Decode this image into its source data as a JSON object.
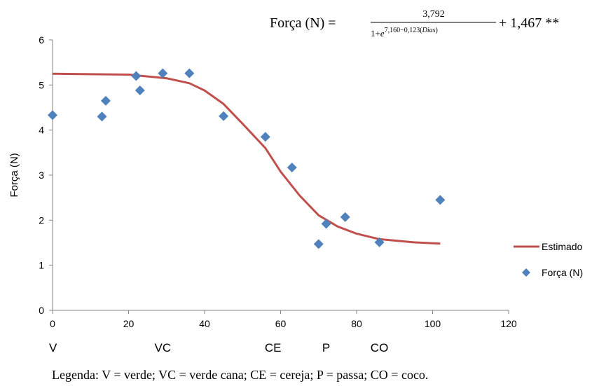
{
  "chart_data": {
    "type": "scatter",
    "ylabel": "Força (N)",
    "xlim": [
      0,
      120
    ],
    "ylim": [
      0,
      6
    ],
    "x_ticks": [
      "0",
      "20",
      "40",
      "60",
      "80",
      "100",
      "120"
    ],
    "y_ticks": [
      "0",
      "1",
      "2",
      "3",
      "4",
      "5",
      "6"
    ],
    "grid": false,
    "legend_position": "right",
    "series": [
      {
        "name": "Força (N)",
        "kind": "scatter",
        "color": "#4F81BD",
        "x": [
          0,
          13,
          14,
          22,
          23,
          29,
          36,
          45,
          56,
          63,
          70,
          72,
          77,
          86,
          102
        ],
        "y": [
          4.33,
          4.3,
          4.65,
          5.2,
          4.88,
          5.26,
          5.26,
          4.31,
          3.85,
          3.17,
          1.47,
          1.92,
          2.07,
          1.51,
          2.45
        ]
      },
      {
        "name": "Estimado",
        "kind": "line",
        "color": "#C0504D",
        "x": [
          0,
          20,
          30,
          36,
          40,
          45,
          50,
          56,
          60,
          65,
          70,
          75,
          80,
          86,
          95,
          102
        ],
        "y": [
          5.25,
          5.23,
          5.15,
          5.04,
          4.88,
          4.58,
          4.14,
          3.6,
          3.08,
          2.55,
          2.11,
          1.86,
          1.7,
          1.58,
          1.51,
          1.48
        ]
      }
    ],
    "stage_labels": [
      {
        "x": 0,
        "text": "V"
      },
      {
        "x": 29,
        "text": "VC"
      },
      {
        "x": 58,
        "text": "CE"
      },
      {
        "x": 72,
        "text": "P"
      },
      {
        "x": 86,
        "text": "CO"
      }
    ],
    "equation": {
      "lhs": "Força (N) =",
      "numerator": "3,792",
      "den_prefix": "1+",
      "den_base": "e",
      "exponent": "7,160−0,123(",
      "exponent_var": "Dias",
      "exponent_close": ")",
      "rhs": "+ 1,467 **"
    },
    "caption": "Legenda: V = verde; VC = verde cana; CE = cereja; P = passa; CO = coco."
  }
}
